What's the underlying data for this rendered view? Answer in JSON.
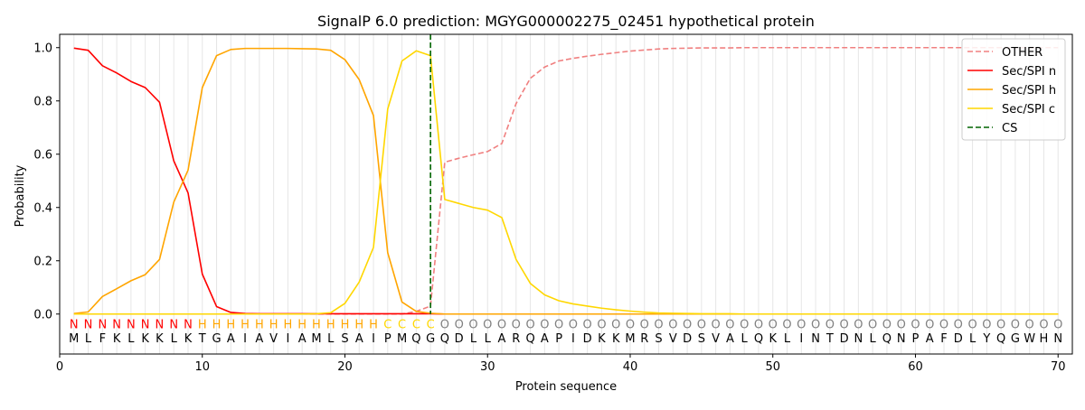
{
  "chart_data": {
    "type": "line",
    "title": "SignalP 6.0 prediction: MGYG000002275_02451 hypothetical protein",
    "xlabel": "Protein sequence",
    "ylabel": "Probability",
    "xlim": [
      0,
      71
    ],
    "ylim": [
      -0.15,
      1.05
    ],
    "xticks": [
      0,
      10,
      20,
      30,
      40,
      50,
      60,
      70
    ],
    "yticks": [
      0.0,
      0.2,
      0.4,
      0.6,
      0.8,
      1.0
    ],
    "grid": "vertical lines at each residue",
    "legend_position": "top-right",
    "sequence": "MLFKLKKLKTGAIAVIAMLSAIPMQGQDLLARQAPIDKKMRSVDSVALQKLINTDNLQNPAFDLYQGWHN",
    "labels": "NNNNNNNNNHHHHHHHHHHHHHCCCCOOOOOOOOOOOOOOOOOOOOOOOOOOOOOOOOOOOOOOOOOOOO",
    "label_colors": {
      "N": "#ff0000",
      "H": "#ffa500",
      "C": "#ffd700",
      "O": "#808080"
    },
    "cleavage_site": 26,
    "series": [
      {
        "name": "OTHER",
        "color": "#f08080",
        "dash": "dashed",
        "values": [
          0.0,
          0.0,
          0.0,
          0.0,
          0.0,
          0.0,
          0.0,
          0.0,
          0.0,
          0.0,
          0.0,
          0.0,
          0.0,
          0.0,
          0.0,
          0.0,
          0.0,
          0.0,
          0.0,
          0.0,
          0.0,
          0.0,
          0.0,
          0.0,
          0.01,
          0.03,
          0.57,
          0.585,
          0.598,
          0.61,
          0.64,
          0.79,
          0.885,
          0.927,
          0.95,
          0.96,
          0.968,
          0.975,
          0.981,
          0.987,
          0.991,
          0.995,
          0.997,
          0.998,
          0.999,
          0.999,
          0.999,
          1.0,
          1.0,
          1.0,
          1.0,
          1.0,
          1.0,
          1.0,
          1.0,
          1.0,
          1.0,
          1.0,
          1.0,
          1.0,
          1.0,
          1.0,
          1.0,
          1.0,
          1.0,
          1.0,
          1.0,
          1.0,
          1.0,
          1.0
        ]
      },
      {
        "name": "Sec/SPI n",
        "color": "#ff0000",
        "dash": "solid",
        "values": [
          0.998,
          0.99,
          0.932,
          0.905,
          0.873,
          0.85,
          0.795,
          0.575,
          0.455,
          0.15,
          0.028,
          0.006,
          0.002,
          0.001,
          0.001,
          0.001,
          0.001,
          0.001,
          0.001,
          0.001,
          0.001,
          0.001,
          0.001,
          0.001,
          0.001,
          0.001,
          0.0,
          0.0,
          0.0,
          0.0,
          0.0,
          0.0,
          0.0,
          0.0,
          0.0,
          0.0,
          0.0,
          0.0,
          0.0,
          0.0,
          0.0,
          0.0,
          0.0,
          0.0,
          0.0,
          0.0,
          0.0,
          0.0,
          0.0,
          0.0,
          0.0,
          0.0,
          0.0,
          0.0,
          0.0,
          0.0,
          0.0,
          0.0,
          0.0,
          0.0,
          0.0,
          0.0,
          0.0,
          0.0,
          0.0,
          0.0,
          0.0,
          0.0,
          0.0,
          0.0
        ]
      },
      {
        "name": "Sec/SPI h",
        "color": "#ffa500",
        "dash": "solid",
        "values": [
          0.002,
          0.008,
          0.066,
          0.095,
          0.125,
          0.148,
          0.205,
          0.42,
          0.54,
          0.85,
          0.97,
          0.993,
          0.997,
          0.997,
          0.997,
          0.997,
          0.996,
          0.995,
          0.99,
          0.955,
          0.88,
          0.745,
          0.23,
          0.045,
          0.01,
          0.003,
          0.0,
          0.0,
          0.0,
          0.0,
          0.0,
          0.0,
          0.0,
          0.0,
          0.0,
          0.0,
          0.0,
          0.0,
          0.0,
          0.0,
          0.0,
          0.0,
          0.0,
          0.0,
          0.0,
          0.0,
          0.0,
          0.0,
          0.0,
          0.0,
          0.0,
          0.0,
          0.0,
          0.0,
          0.0,
          0.0,
          0.0,
          0.0,
          0.0,
          0.0,
          0.0,
          0.0,
          0.0,
          0.0,
          0.0,
          0.0,
          0.0,
          0.0,
          0.0,
          0.0
        ]
      },
      {
        "name": "Sec/SPI c",
        "color": "#ffd700",
        "dash": "solid",
        "values": [
          0.0,
          0.0,
          0.0,
          0.0,
          0.0,
          0.0,
          0.0,
          0.0,
          0.0,
          0.0,
          0.0,
          0.0,
          0.0,
          0.0,
          0.0,
          0.0,
          0.0,
          0.001,
          0.005,
          0.04,
          0.12,
          0.25,
          0.77,
          0.95,
          0.988,
          0.97,
          0.43,
          0.415,
          0.4,
          0.39,
          0.362,
          0.205,
          0.115,
          0.072,
          0.05,
          0.038,
          0.03,
          0.022,
          0.016,
          0.011,
          0.007,
          0.004,
          0.003,
          0.002,
          0.001,
          0.001,
          0.001,
          0.0,
          0.0,
          0.0,
          0.0,
          0.0,
          0.0,
          0.0,
          0.0,
          0.0,
          0.0,
          0.0,
          0.0,
          0.0,
          0.0,
          0.0,
          0.0,
          0.0,
          0.0,
          0.0,
          0.0,
          0.0,
          0.0,
          0.0
        ]
      }
    ],
    "legend": [
      {
        "label": "OTHER",
        "color": "#f08080",
        "dash": "dashed"
      },
      {
        "label": "Sec/SPI n",
        "color": "#ff0000",
        "dash": "solid"
      },
      {
        "label": "Sec/SPI h",
        "color": "#ffa500",
        "dash": "solid"
      },
      {
        "label": "Sec/SPI c",
        "color": "#ffd700",
        "dash": "solid"
      },
      {
        "label": "CS",
        "color": "#006400",
        "dash": "dashed"
      }
    ]
  }
}
